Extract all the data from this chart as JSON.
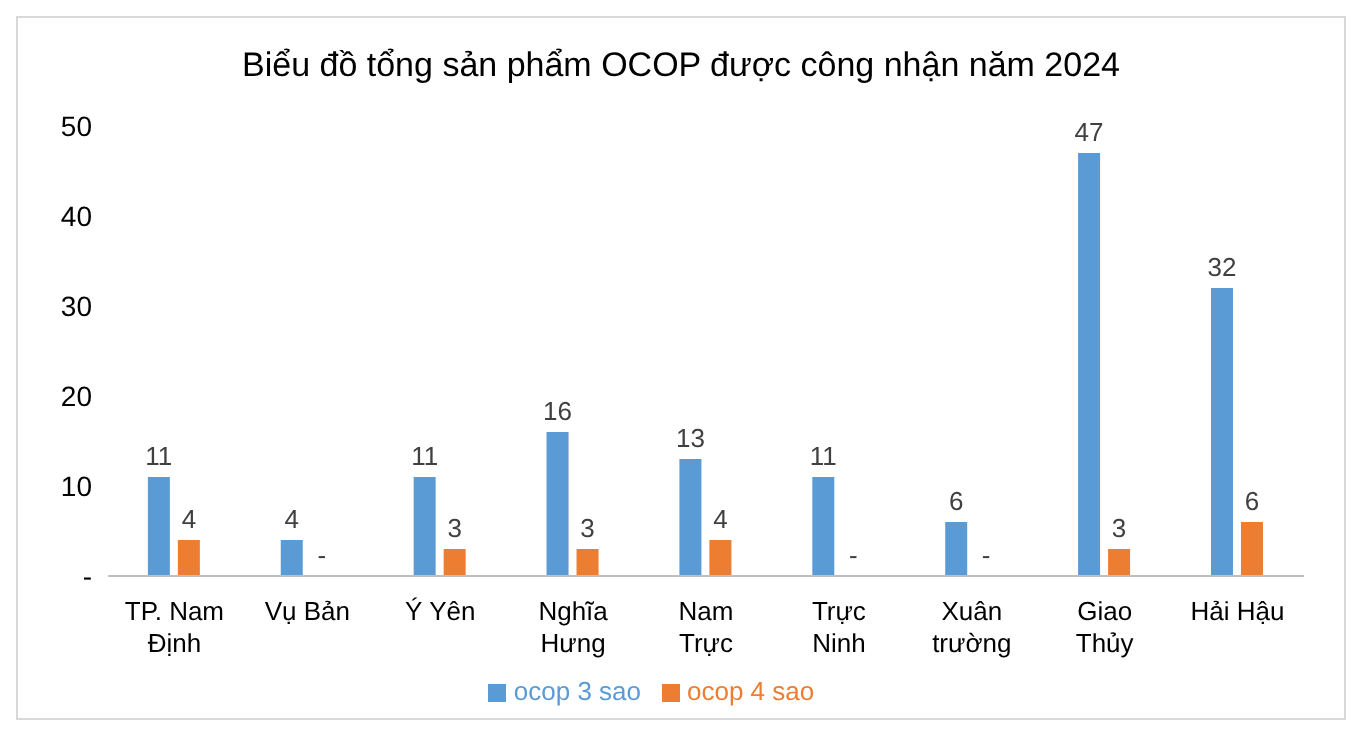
{
  "chart_data": {
    "type": "bar",
    "title": "Biểu đồ tổng sản phẩm OCOP được công nhận năm 2024",
    "categories": [
      "TP. Nam Định",
      "Vụ Bản",
      "Ý Yên",
      "Nghĩa Hưng",
      "Nam Trực",
      "Trực Ninh",
      "Xuân trường",
      "Giao Thủy",
      "Hải Hậu"
    ],
    "series": [
      {
        "name": "ocop 3 sao",
        "color": "#5b9bd5",
        "values": [
          11,
          4,
          11,
          16,
          13,
          11,
          6,
          47,
          32
        ],
        "value_labels": [
          "11",
          "4",
          "11",
          "16",
          "13",
          "11",
          "6",
          "47",
          "32"
        ]
      },
      {
        "name": "ocop 4 sao",
        "color": "#ed7d31",
        "values": [
          4,
          0,
          3,
          3,
          4,
          0,
          0,
          3,
          6
        ],
        "value_labels": [
          "4",
          "-",
          "3",
          "3",
          "4",
          "-",
          "-",
          "3",
          "6"
        ]
      }
    ],
    "ylim": [
      0,
      50
    ],
    "yticks": [
      {
        "value": 0,
        "label": "-"
      },
      10,
      20,
      30,
      40,
      50
    ],
    "grid": false,
    "legend": "bottom"
  }
}
